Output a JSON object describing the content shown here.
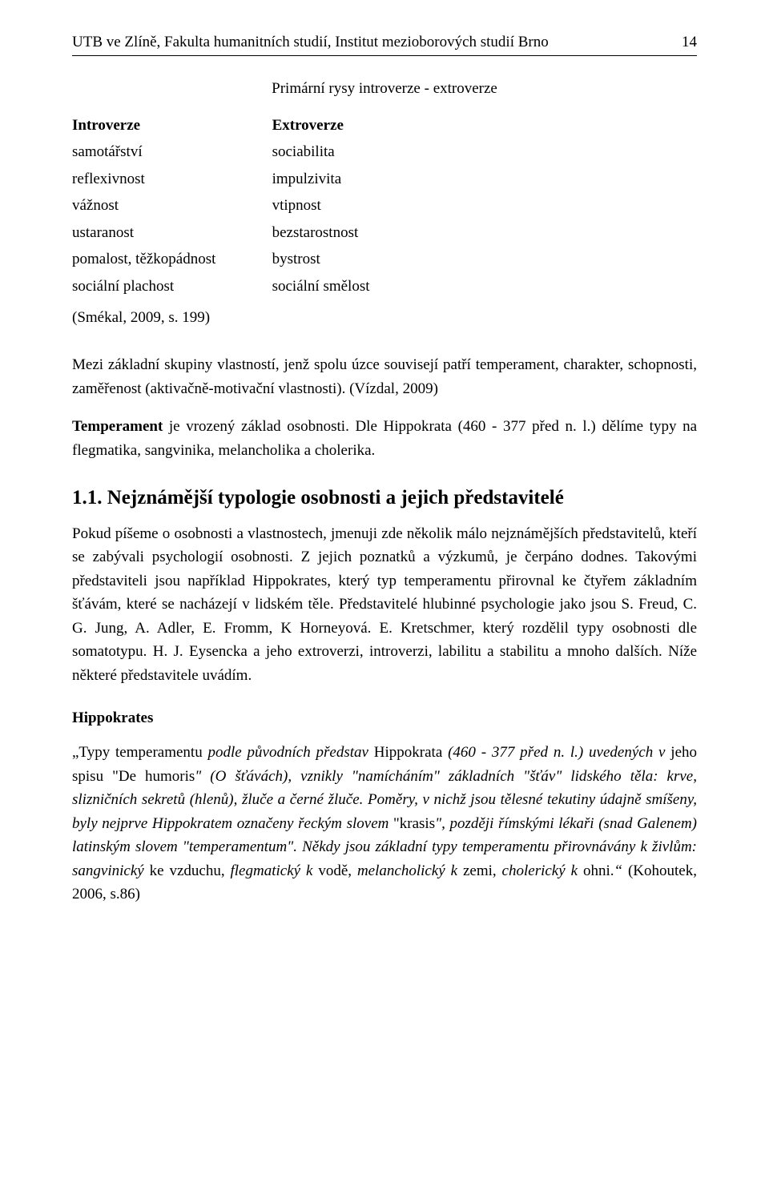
{
  "header": {
    "left": "UTB ve Zlíně, Fakulta humanitních studií, Institut mezioborových studií Brno",
    "page_number": "14"
  },
  "table_title": "Primární rysy introverze - extroverze",
  "trait_table": {
    "head_left": "Introverze",
    "head_right": "Extroverze",
    "rows": [
      {
        "left": "samotářství",
        "right": "sociabilita"
      },
      {
        "left": "reflexivnost",
        "right": "impulzivita"
      },
      {
        "left": "vážnost",
        "right": "vtipnost"
      },
      {
        "left": "ustaranost",
        "right": "bezstarostnost"
      },
      {
        "left": "pomalost, těžkopádnost",
        "right": "bystrost"
      },
      {
        "left": "sociální plachost",
        "right": "sociální smělost"
      }
    ]
  },
  "table_citation": "(Smékal, 2009, s. 199)",
  "para1": "Mezi základní skupiny vlastností, jenž spolu úzce souvisejí patří temperament, charakter, schopnosti, zaměřenost (aktivačně-motivační vlastnosti). (Vízdal, 2009)",
  "para2_bold": "Temperament",
  "para2_rest": " je vrozený základ osobnosti. Dle Hippokrata (460 - 377 před n. l.) dělíme typy na flegmatika, sangvinika, melancholika a cholerika.",
  "section_heading": "1.1. Nejznámější typologie osobnosti a jejich představitelé",
  "para3": "Pokud píšeme o osobnosti a vlastnostech, jmenuji zde několik málo nejznámějších představitelů, kteří se zabývali psychologií osobnosti. Z jejich poznatků a výzkumů, je čerpáno dodnes. Takovými představiteli jsou například Hippokrates, který typ temperamentu přirovnal ke čtyřem základním šťávám, které se nacházejí v lidském těle. Představitelé hlubinné psychologie jako jsou S. Freud, C. G. Jung, A. Adler, E. Fromm, K Horneyová. E. Kretschmer, který rozdělil typy osobnosti dle somatotypu. H. J. Eysencka a jeho extroverzi, introverzi, labilitu a stabilitu a mnoho dalších. Níže některé představitele uvádím.",
  "sub_heading": "Hippokrates",
  "quote": {
    "seg1": "„Typy  temperamentu ",
    "seg2_italic": "podle   původních   představ ",
    "seg3": "Hippokrata ",
    "seg4_italic": "(460   -   377  před  n.  l.) uvedených  v ",
    "seg5": "jeho spisu \"De humoris",
    "seg6_italic": "\" (O šťávách), vznikly \"namícháním\" základních \"šťáv\" lidského těla: krve, slizničních sekretů (hlenů), žluče a černé žluče. Poměry, v nichž jsou tělesné tekutiny údajně smíšeny, byly nejprve Hippokratem označeny řeckým slovem ",
    "seg7": "\"krasis",
    "seg8_italic": "\", později římskými lékaři (snad Galenem) latinským slovem \"temperamentum\". Někdy  jsou  základní  typy  temperamentu  přirovnávány  k  živlům:  sangvinický ",
    "seg9": "ke vzduchu, ",
    "seg10_italic": "flegmatický  k  ",
    "seg11": "vodě, ",
    "seg12_italic": "melancholický  k ",
    "seg13": "zemi, ",
    "seg14_italic": "cholerický  k ",
    "seg15": "ohni.",
    "seg16_italic": "“   ",
    "seg17": "(Kohoutek, 2006, s.86)"
  }
}
